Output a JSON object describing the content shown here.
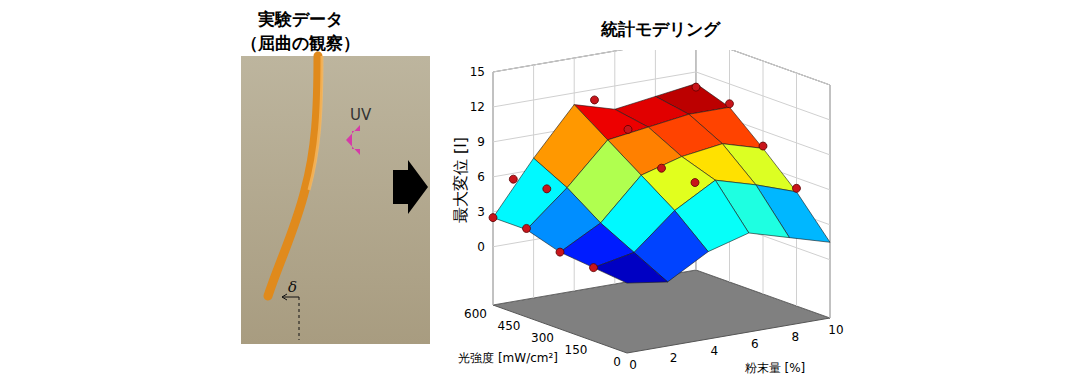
{
  "left_panel": {
    "title": [
      "実験データ",
      "（屈曲の観察）"
    ],
    "labels": [
      "UV",
      "δ"
    ]
  },
  "chart_data": {
    "type": "surface3d",
    "title": "統計モデリング",
    "x_label": "粉末量 [%]",
    "y_label": "光強度 [mW/cm²]",
    "z_label": "最大変位 [l]",
    "xlim": [
      0,
      10
    ],
    "xticks": [
      0,
      2,
      4,
      6,
      8,
      10
    ],
    "ylim": [
      0,
      600
    ],
    "yticks": [
      0,
      150,
      300,
      450,
      600
    ],
    "zlim": [
      -5,
      15
    ],
    "zticks": [
      0,
      3,
      6,
      9,
      12,
      15
    ],
    "grid": true,
    "surface": {
      "x": [
        0,
        2,
        4,
        6,
        8,
        10
      ],
      "y": [
        0,
        150,
        300,
        450,
        600
      ],
      "z": [
        [
          1.0,
          0.5,
          2.5,
          3.5,
          2.5,
          1.5
        ],
        [
          1.3,
          2.0,
          5.0,
          7.0,
          6.0,
          4.8
        ],
        [
          1.6,
          3.5,
          7.0,
          8.0,
          8.5,
          7.5
        ],
        [
          2.5,
          5.5,
          9.0,
          9.5,
          10.0,
          10.0
        ],
        [
          2.5,
          7.0,
          11.0,
          10.0,
          10.5,
          11.0
        ]
      ]
    },
    "points": {
      "x": [
        0,
        0,
        0,
        0,
        1,
        1,
        5,
        5,
        5,
        5,
        10,
        10,
        10,
        10
      ],
      "y": [
        600,
        450,
        300,
        150,
        600,
        450,
        600,
        450,
        300,
        150,
        600,
        450,
        300,
        150
      ],
      "z": [
        2.5,
        2.6,
        1.6,
        1.3,
        5.5,
        5.7,
        11.1,
        9.6,
        7.3,
        7.1,
        10.7,
        10.3,
        7.7,
        5.1
      ],
      "color": "#c8151b"
    }
  }
}
